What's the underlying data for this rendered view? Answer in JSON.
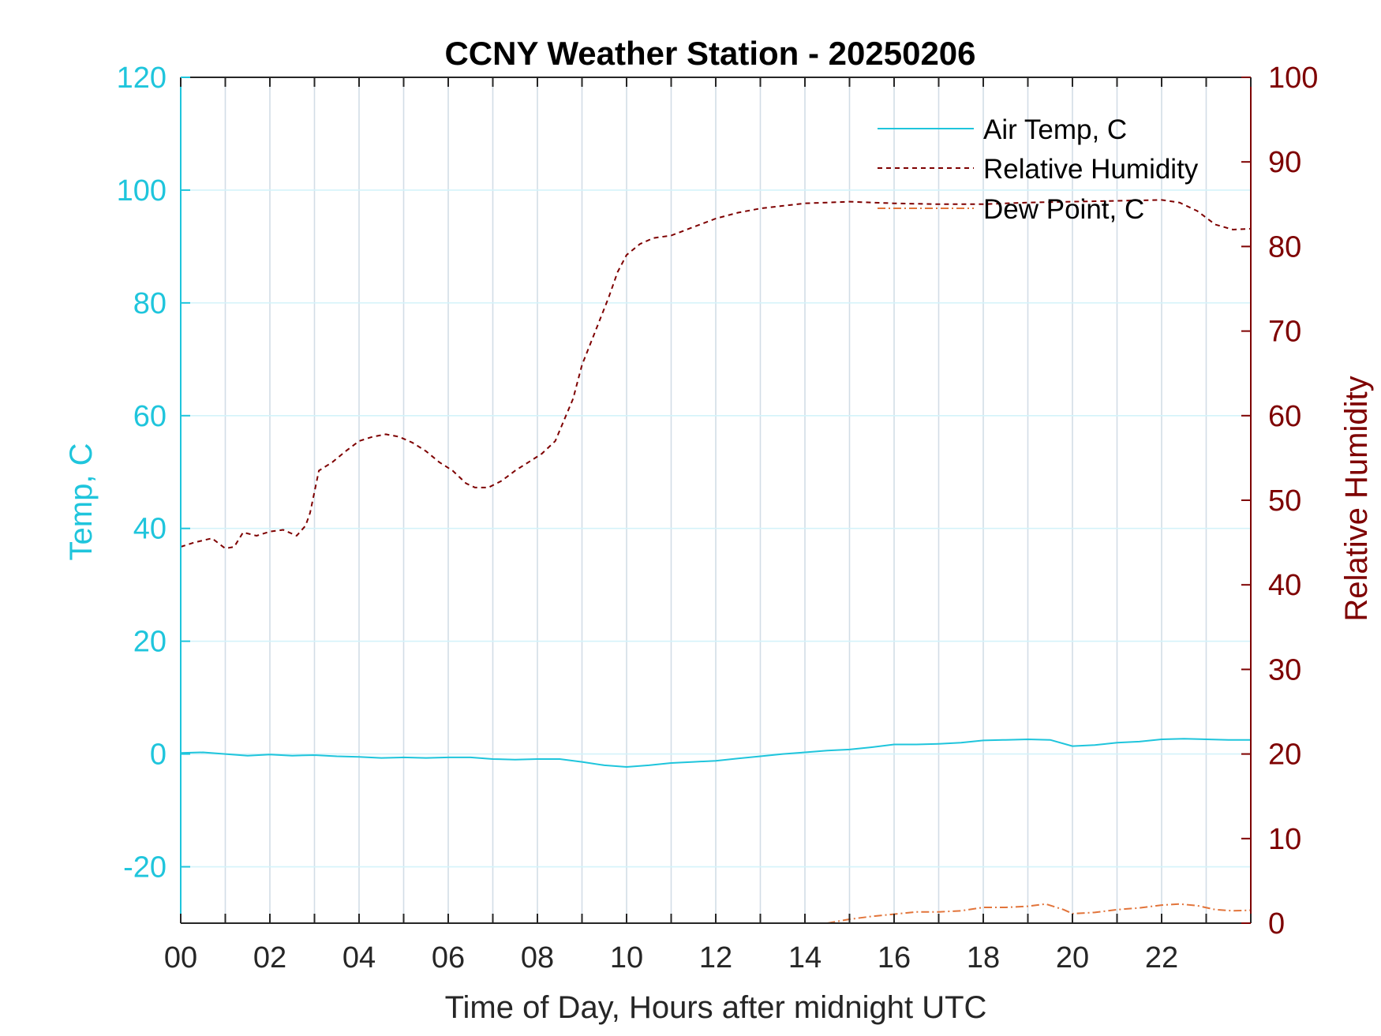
{
  "chart_data": {
    "type": "line",
    "title": "CCNY Weather Station - 20250206",
    "xlabel": "Time of Day, Hours after midnight UTC",
    "ylabel_left": "Temp, C",
    "ylabel_right": "Relative Humidity",
    "xlim": [
      0,
      24
    ],
    "ylim_left": [
      -30,
      120
    ],
    "ylim_right": [
      0,
      100
    ],
    "x_ticks": [
      0,
      2,
      4,
      6,
      8,
      10,
      12,
      14,
      16,
      18,
      20,
      22
    ],
    "x_tick_labels": [
      "00",
      "02",
      "04",
      "06",
      "08",
      "10",
      "12",
      "14",
      "16",
      "18",
      "20",
      "22"
    ],
    "y_left_ticks": [
      -20,
      0,
      20,
      40,
      60,
      80,
      100,
      120
    ],
    "y_right_ticks": [
      0,
      10,
      20,
      30,
      40,
      50,
      60,
      70,
      80,
      90,
      100
    ],
    "grid": true,
    "legend_position": "top-right",
    "colors": {
      "air_temp": "#1fc5dc",
      "humidity": "#7e0000",
      "dew_point": "#e2743a",
      "grid": "#d2dde6",
      "hgrid": "#d4f3fa"
    },
    "series": [
      {
        "name": "Air Temp, C",
        "axis": "left",
        "style": "solid",
        "x": [
          0,
          0.5,
          1,
          1.5,
          2,
          2.5,
          3,
          3.5,
          4,
          4.5,
          5,
          5.5,
          6,
          6.5,
          7,
          7.5,
          8,
          8.5,
          9,
          9.5,
          10,
          10.5,
          11,
          11.5,
          12,
          12.5,
          13,
          13.5,
          14,
          14.5,
          15,
          15.5,
          16,
          16.5,
          17,
          17.5,
          18,
          18.5,
          19,
          19.5,
          20,
          20.5,
          21,
          21.5,
          22,
          22.5,
          23,
          23.5,
          24
        ],
        "values": [
          0.2,
          0.3,
          0,
          -0.3,
          -0.1,
          -0.3,
          -0.2,
          -0.4,
          -0.5,
          -0.7,
          -0.6,
          -0.7,
          -0.6,
          -0.6,
          -0.9,
          -1.0,
          -0.9,
          -0.9,
          -1.4,
          -2.0,
          -2.3,
          -2.0,
          -1.6,
          -1.4,
          -1.2,
          -0.8,
          -0.4,
          0,
          0.3,
          0.6,
          0.8,
          1.2,
          1.7,
          1.7,
          1.8,
          2.0,
          2.4,
          2.5,
          2.6,
          2.5,
          1.4,
          1.6,
          2.0,
          2.2,
          2.6,
          2.7,
          2.6,
          2.5,
          2.5
        ]
      },
      {
        "name": "Relative Humidity",
        "axis": "right",
        "style": "dashed",
        "x": [
          0,
          0.3,
          0.7,
          1,
          1.2,
          1.4,
          1.7,
          2,
          2.3,
          2.6,
          2.8,
          2.9,
          3.1,
          3.4,
          3.7,
          4,
          4.3,
          4.6,
          4.9,
          5.2,
          5.5,
          5.8,
          6.1,
          6.4,
          6.6,
          6.9,
          7.2,
          7.5,
          7.8,
          8.1,
          8.4,
          8.6,
          8.8,
          9.0,
          9.3,
          9.6,
          9.8,
          10,
          10.3,
          10.6,
          11,
          11.5,
          12,
          12.5,
          13,
          13.5,
          14,
          14.5,
          15,
          15.5,
          16,
          17,
          18,
          19,
          20,
          21,
          22,
          22.4,
          22.8,
          23.2,
          23.6,
          24
        ],
        "values": [
          44.5,
          45,
          45.5,
          44.3,
          44.5,
          46.2,
          45.8,
          46.3,
          46.5,
          45.8,
          47,
          48.5,
          53.5,
          54.5,
          55.8,
          57,
          57.5,
          57.8,
          57.5,
          56.8,
          55.8,
          54.5,
          53.5,
          52,
          51.5,
          51.5,
          52.3,
          53.5,
          54.5,
          55.5,
          57,
          59.5,
          62,
          66,
          70,
          74,
          77,
          79,
          80.3,
          81,
          81.3,
          82.3,
          83.3,
          84,
          84.5,
          84.8,
          85.1,
          85.2,
          85.3,
          85.2,
          85.1,
          85.0,
          85.0,
          85.2,
          85.3,
          85.4,
          85.5,
          85.2,
          84.2,
          82.6,
          82.0,
          82.1
        ]
      },
      {
        "name": "Dew Point, C",
        "axis": "left",
        "style": "dashdot",
        "x": [
          14.5,
          15,
          15.5,
          16,
          16.5,
          17,
          17.5,
          18,
          18.5,
          19,
          19.4,
          19.8,
          20,
          20.5,
          21,
          21.5,
          22,
          22.4,
          22.8,
          23.2,
          23.6,
          24
        ],
        "values": [
          -30,
          -29.3,
          -28.8,
          -28.4,
          -28.0,
          -28.0,
          -27.8,
          -27.2,
          -27.2,
          -27.0,
          -26.6,
          -27.6,
          -28.3,
          -28.1,
          -27.6,
          -27.3,
          -26.8,
          -26.6,
          -26.9,
          -27.6,
          -27.8,
          -27.7
        ]
      }
    ]
  }
}
